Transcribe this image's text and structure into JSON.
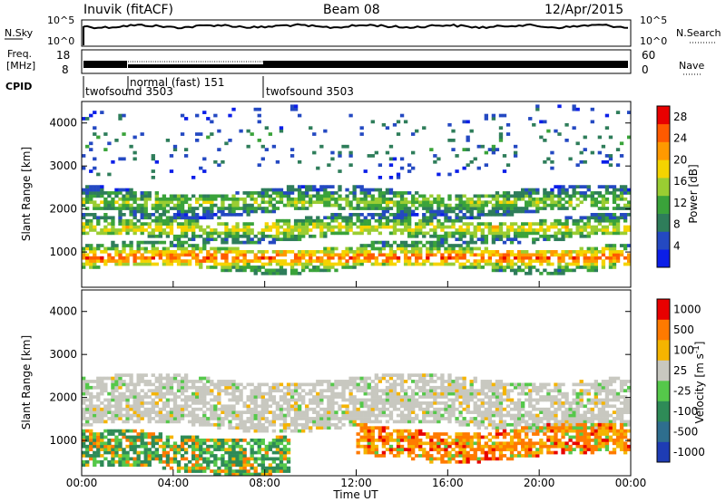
{
  "header": {
    "station": "Inuvik (fitACF)",
    "beam": "Beam 08",
    "date": "12/Apr/2015"
  },
  "panels": {
    "nsky": {
      "label": "N.Sky",
      "ticks": [
        "10^5",
        "10^0"
      ],
      "right_label": "N.Search",
      "right_ticks": [
        "10^5",
        "10^0"
      ]
    },
    "freq": {
      "label_top": "Freq.",
      "label_bottom": "[MHz]",
      "ticks": [
        "18",
        "8"
      ],
      "right_label": "Nave",
      "right_ticks": [
        "60",
        "0"
      ]
    },
    "cpid": {
      "label": "CPID",
      "modes": [
        "twofsound 3503",
        "normal (fast) 151",
        "twofsound 3503"
      ]
    }
  },
  "chart_data": [
    {
      "type": "heatmap",
      "title": "",
      "quantity": "Power",
      "xlabel": "",
      "ylabel": "Slant Range [km]",
      "x_ticks": [
        "00:00",
        "04:00",
        "08:00",
        "12:00",
        "16:00",
        "20:00",
        "00:00"
      ],
      "x_range_hours": [
        0,
        24
      ],
      "y_ticks": [
        1000,
        2000,
        3000,
        4000
      ],
      "y_range_km": [
        180,
        4500
      ],
      "colorbar": {
        "label": "Power [dB]",
        "ticks": [
          4,
          8,
          12,
          16,
          20,
          24,
          28
        ],
        "range": [
          0,
          30
        ],
        "colors": [
          "#0b1ee8",
          "#2449c2",
          "#2e7d5a",
          "#3aa33a",
          "#9acd32",
          "#f5d400",
          "#ff9900",
          "#ff5a00",
          "#e80000"
        ]
      },
      "bands": [
        {
          "name": "near range strong echoes",
          "range_km": [
            600,
            1150
          ],
          "hours": [
            0,
            24
          ],
          "peak_power_db": 28
        },
        {
          "name": "mid band",
          "range_km": [
            1300,
            1800
          ],
          "hours": [
            0,
            24
          ],
          "peak_power_db": 20
        },
        {
          "name": "far band",
          "range_km": [
            1900,
            2450
          ],
          "hours": [
            0,
            24
          ],
          "peak_power_db": 14
        },
        {
          "name": "scattered high range",
          "range_km": [
            2800,
            4300
          ],
          "hours": [
            0,
            24
          ],
          "peak_power_db": 8
        }
      ]
    },
    {
      "type": "heatmap",
      "title": "",
      "quantity": "Velocity",
      "xlabel": "Time UT",
      "ylabel": "Slant Range [km]",
      "x_ticks": [
        "00:00",
        "04:00",
        "08:00",
        "12:00",
        "16:00",
        "20:00",
        "00:00"
      ],
      "x_range_hours": [
        0,
        24
      ],
      "y_ticks": [
        1000,
        2000,
        3000,
        4000
      ],
      "y_range_km": [
        180,
        4500
      ],
      "colorbar": {
        "label": "Velocity [m s^-1]",
        "ticks": [
          "1000",
          "500",
          "100",
          "25",
          "-25",
          "-100",
          "-500",
          "-1000"
        ],
        "colors": [
          "#1e3cb4",
          "#2e6e8e",
          "#2e8b57",
          "#55c84a",
          "#c8c8c0",
          "#f5b400",
          "#ff7a00",
          "#e80000"
        ]
      },
      "bands": [
        {
          "name": "ground scatter (low velocity)",
          "range_km": [
            1300,
            2450
          ],
          "hours": [
            0,
            24
          ],
          "velocity": "-25 to 25"
        },
        {
          "name": "ionospheric echoes toward radar",
          "range_km": [
            300,
            1150
          ],
          "hours": [
            0,
            9
          ],
          "velocity": "100 to 500"
        },
        {
          "name": "ionospheric echoes away from radar",
          "range_km": [
            600,
            1300
          ],
          "hours": [
            12,
            24
          ],
          "velocity": "-100 to -500"
        }
      ]
    }
  ]
}
